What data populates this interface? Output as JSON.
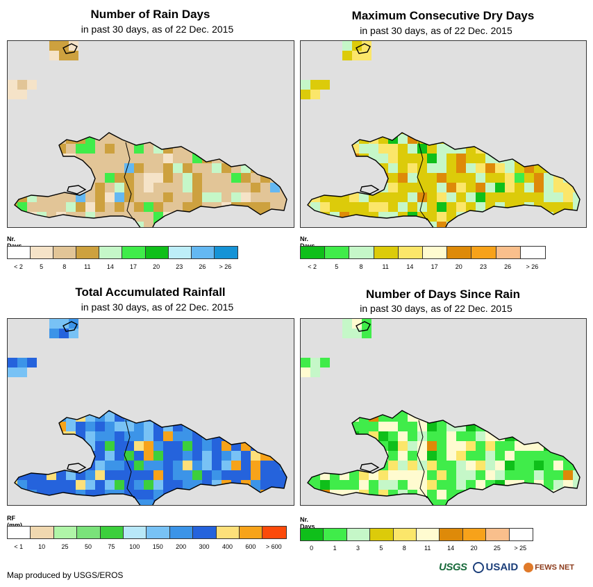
{
  "panels": [
    {
      "id": "rain-days",
      "title": "Number of Rain Days",
      "subtitle": "in past 30 days, as of 22 Dec. 2015",
      "legend_title": "Nr. Days",
      "legend_colors": [
        "#ffffff",
        "#f5e3c8",
        "#e2c597",
        "#cda13f",
        "#c5f7c8",
        "#40ec4a",
        "#0fbf1a",
        "#bdeef8",
        "#64b8f2",
        "#1693d6"
      ],
      "legend_ticks": [
        "< 2",
        "5",
        "8",
        "11",
        "14",
        "17",
        "20",
        "23",
        "26",
        "> 26"
      ],
      "palette_keys": [
        "#e2c597",
        "#cda13f",
        "#f5e3c8",
        "#c5f7c8",
        "#40ec4a",
        "#64b8f2"
      ]
    },
    {
      "id": "max-dry-days",
      "title": "Maximum Consecutive Dry Days",
      "subtitle": "in past 30 days, as of 22 Dec. 2015",
      "legend_title": "Nr. Days",
      "legend_colors": [
        "#0fbf1a",
        "#40ec4a",
        "#c5f7c8",
        "#dccb0a",
        "#fbe66a",
        "#fffbd0",
        "#de8a09",
        "#f7a21a",
        "#f9bf8c",
        "#ffffff"
      ],
      "legend_ticks": [
        "< 2",
        "5",
        "8",
        "11",
        "14",
        "17",
        "20",
        "23",
        "26",
        "> 26"
      ],
      "palette_keys": [
        "#dccb0a",
        "#c5f7c8",
        "#fbe66a",
        "#de8a09",
        "#0fbf1a",
        "#40ec4a"
      ]
    },
    {
      "id": "total-rainfall",
      "title": "Total Accumulated Rainfall",
      "subtitle": "in past 30 days, as of 22 Dec. 2015",
      "legend_title": "RF (mm)",
      "legend_colors": [
        "#ffffff",
        "#f0d8b0",
        "#b0f5a8",
        "#7ae27a",
        "#3ccf3c",
        "#b8e8f8",
        "#78c2f5",
        "#3c94e8",
        "#2563dc",
        "#fde07a",
        "#f7a31a",
        "#fc4a0a"
      ],
      "legend_ticks": [
        "< 1",
        "10",
        "25",
        "50",
        "75",
        "100",
        "150",
        "200",
        "300",
        "400",
        "600",
        "> 600"
      ],
      "palette_keys": [
        "#2563dc",
        "#3c94e8",
        "#78c2f5",
        "#fde07a",
        "#f7a31a",
        "#3ccf3c"
      ]
    },
    {
      "id": "days-since-rain",
      "title": "Number of Days Since Rain",
      "subtitle": "in past 30 days, as of 22 Dec. 2015",
      "legend_title": "Nr. Days",
      "legend_colors": [
        "#0fbf1a",
        "#40ec4a",
        "#c5f7c8",
        "#dccb0a",
        "#fbe66a",
        "#fffbd0",
        "#de8a09",
        "#f7a21a",
        "#f9bf8c",
        "#ffffff"
      ],
      "legend_ticks": [
        "0",
        "1",
        "3",
        "5",
        "8",
        "11",
        "14",
        "20",
        "25",
        "> 25"
      ],
      "palette_keys": [
        "#40ec4a",
        "#fffbd0",
        "#c5f7c8",
        "#fbe66a",
        "#0fbf1a",
        "#de8a09"
      ]
    }
  ],
  "footer": "Map produced by USGS/EROS",
  "logos": {
    "usgs": "USGS",
    "usaid": "USAID",
    "fews": "FEWS NET"
  }
}
